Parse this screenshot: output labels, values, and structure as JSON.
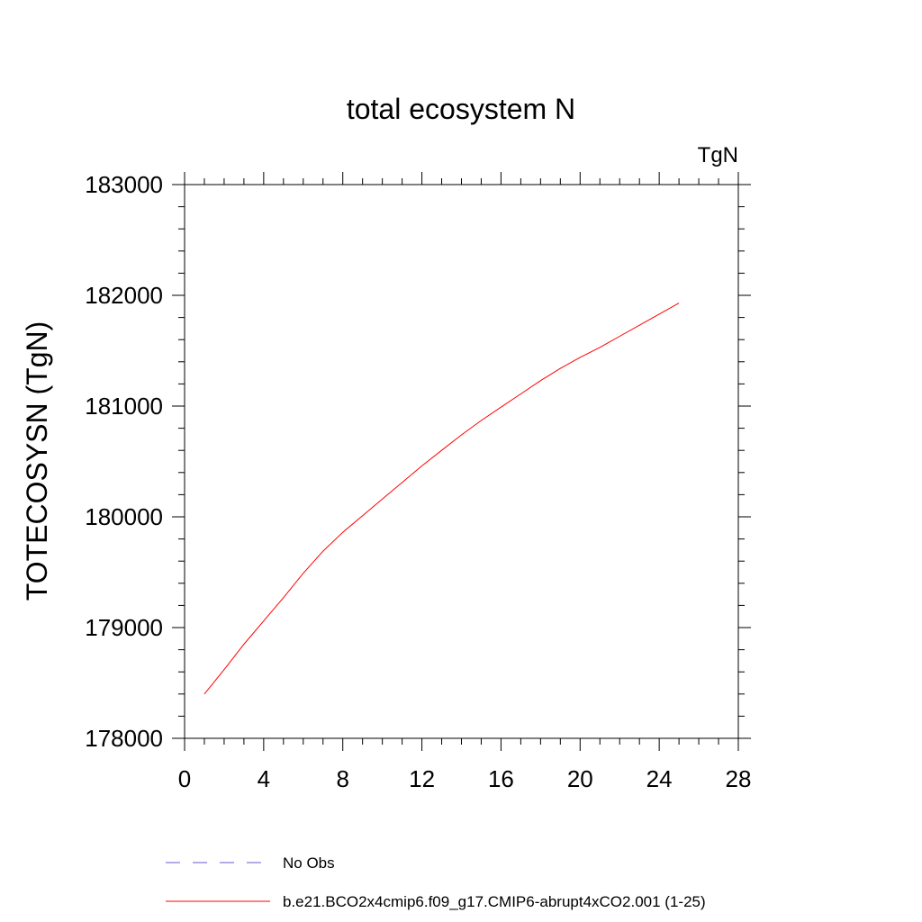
{
  "chart_data": {
    "type": "line",
    "title": "total ecosystem N",
    "units_label": "TgN",
    "xlabel": "",
    "ylabel": "TOTECOSYSN  (TgN)",
    "xlim": [
      0,
      28
    ],
    "ylim": [
      178000,
      183000
    ],
    "xticks": [
      0,
      4,
      8,
      12,
      16,
      20,
      24,
      28
    ],
    "xtick_labels": [
      "0",
      "4",
      "8",
      "12",
      "16",
      "20",
      "24",
      "28"
    ],
    "yticks": [
      178000,
      179000,
      180000,
      181000,
      182000,
      183000
    ],
    "ytick_labels": [
      "178000",
      "179000",
      "180000",
      "181000",
      "182000",
      "183000"
    ],
    "grid": false,
    "legend_position": "bottom",
    "legend": [
      {
        "label": "No Obs",
        "color": "#6a5acd",
        "style": "dashed"
      },
      {
        "label": "b.e21.BCO2x4cmip6.f09_g17.CMIP6-abrupt4xCO2.001 (1-25)",
        "color": "#ff0000",
        "style": "solid"
      }
    ],
    "series": [
      {
        "name": "b.e21.BCO2x4cmip6.f09_g17.CMIP6-abrupt4xCO2.001 (1-25)",
        "color": "#ff0000",
        "x": [
          1,
          2,
          3,
          4,
          5,
          6,
          7,
          8,
          9,
          10,
          11,
          12,
          13,
          14,
          15,
          16,
          17,
          18,
          19,
          20,
          21,
          22,
          23,
          24,
          25
        ],
        "values": [
          178400,
          178620,
          178850,
          179060,
          179270,
          179490,
          179690,
          179860,
          180010,
          180160,
          180310,
          180460,
          180600,
          180740,
          180870,
          180990,
          181110,
          181230,
          181340,
          181440,
          181530,
          181630,
          181730,
          181830,
          181930
        ]
      }
    ]
  }
}
